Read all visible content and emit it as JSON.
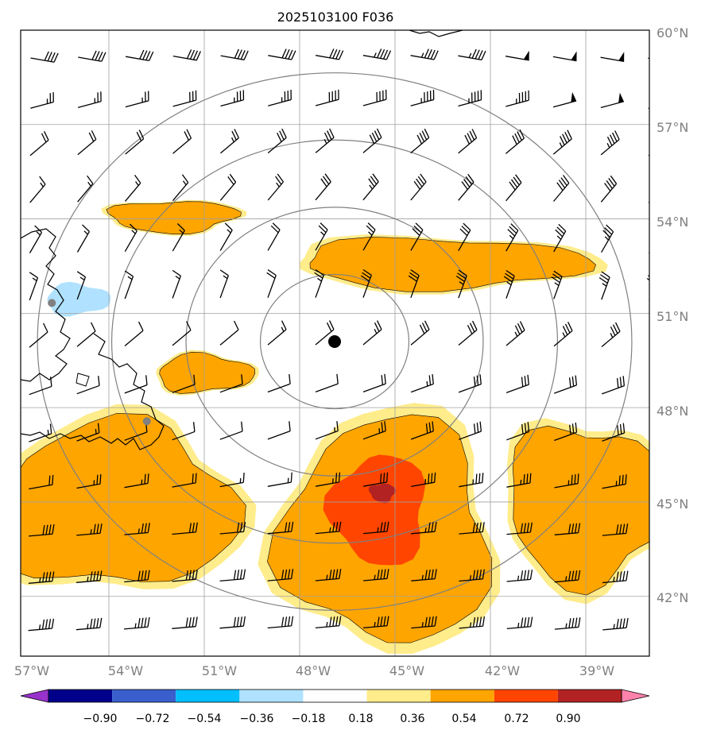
{
  "title": "2025103100 F036",
  "map": {
    "projection": "polar stereographic",
    "lon_range": [
      -57.5,
      -36.5
    ],
    "lat_range": [
      40.3,
      60.0
    ],
    "center_marker": {
      "lon": -46.9,
      "lat": 50.1
    },
    "site_markers": [
      {
        "lon": -55.8,
        "lat": 51.4
      },
      {
        "lon": -52.8,
        "lat": 47.6
      }
    ],
    "range_rings_km": [
      250,
      500,
      750,
      1000
    ],
    "gridlines": true,
    "land_color": "#ffffff",
    "coastline_color": "#000000",
    "grid_color": "#a0a0a0",
    "ring_color": "#808080"
  },
  "axes": {
    "lon_ticks": [
      "57°W",
      "54°W",
      "51°W",
      "48°W",
      "45°W",
      "42°W",
      "39°W"
    ],
    "lat_ticks": [
      "60°N",
      "57°N",
      "54°N",
      "51°N",
      "48°N",
      "45°N",
      "42°N"
    ]
  },
  "colorbar": {
    "extend": "both",
    "levels": [
      -0.9,
      -0.72,
      -0.54,
      -0.36,
      -0.18,
      0.18,
      0.36,
      0.54,
      0.72,
      0.9
    ],
    "labels": [
      "−0.90",
      "−0.72",
      "−0.54",
      "−0.36",
      "−0.18",
      "0.18",
      "0.36",
      "0.54",
      "0.72",
      "0.90"
    ],
    "colors": [
      "#9932cc",
      "#00008b",
      "#3a5fcd",
      "#00bfff",
      "#b0e2ff",
      "#ffffff",
      "#ffec8b",
      "#ffa500",
      "#ff4500",
      "#b22222",
      "#ff82ab"
    ]
  },
  "field_regions": [
    {
      "name": "labrador-sea-band",
      "level": 0.36,
      "lon": [
        -54,
        -50
      ],
      "lat": [
        53.6,
        54.6
      ]
    },
    {
      "name": "central-north-band",
      "level": 0.36,
      "lon": [
        -48,
        -39
      ],
      "lat": [
        51.8,
        53.4
      ]
    },
    {
      "name": "newfoundland-band",
      "level": 0.36,
      "lon": [
        -52.5,
        -49.5
      ],
      "lat": [
        48.5,
        49.7
      ]
    },
    {
      "name": "southwest-patch",
      "level": 0.36,
      "lon": [
        -57.5,
        -50
      ],
      "lat": [
        42.3,
        47.5
      ]
    },
    {
      "name": "central-south-patch",
      "level": 0.36,
      "lon": [
        -48.5,
        -42
      ],
      "lat": [
        40.5,
        47.6
      ]
    },
    {
      "name": "central-south-core",
      "level": 0.54,
      "lon": [
        -47,
        -44
      ],
      "lat": [
        43,
        46.5
      ]
    },
    {
      "name": "central-south-peak",
      "level": 0.72,
      "lon": [
        -45.8,
        -45
      ],
      "lat": [
        45,
        45.6
      ]
    },
    {
      "name": "east-patch",
      "level": 0.36,
      "lon": [
        -41.5,
        -36.5
      ],
      "lat": [
        42.5,
        47.5
      ]
    },
    {
      "name": "blue-spot",
      "level": -0.36,
      "lon": [
        -56,
        -54
      ],
      "lat": [
        51,
        52
      ]
    }
  ],
  "wind_barbs": {
    "units": "knots",
    "lons": [
      -56.5,
      -55,
      -53.5,
      -52,
      -50.5,
      -49,
      -47.5,
      -46,
      -44.5,
      -43,
      -41.5,
      -40,
      -38.5,
      -37
    ],
    "lats": [
      59.2,
      57.6,
      56.1,
      54.6,
      53.0,
      51.5,
      50.0,
      48.5,
      47.0,
      45.5,
      44.0,
      42.5,
      41.0
    ],
    "rows": [
      {
        "lat": 59.2,
        "dir": 280,
        "speed": [
          40,
          40,
          40,
          40,
          40,
          40,
          40,
          45,
          45,
          45,
          50,
          50,
          50,
          50
        ]
      },
      {
        "lat": 57.6,
        "dir": 255,
        "speed": [
          25,
          25,
          25,
          30,
          35,
          35,
          40,
          40,
          45,
          45,
          45,
          50,
          50,
          50
        ]
      },
      {
        "lat": 56.1,
        "dir": 230,
        "speed": [
          20,
          20,
          20,
          20,
          25,
          30,
          35,
          40,
          40,
          40,
          40,
          45,
          45,
          45
        ]
      },
      {
        "lat": 54.6,
        "dir": 220,
        "speed": [
          15,
          15,
          15,
          15,
          20,
          25,
          30,
          35,
          40,
          40,
          40,
          40,
          40,
          45
        ]
      },
      {
        "lat": 53.0,
        "dir": 210,
        "speed": [
          15,
          15,
          15,
          15,
          15,
          20,
          25,
          25,
          30,
          30,
          35,
          35,
          35,
          35
        ]
      },
      {
        "lat": 51.5,
        "dir": 200,
        "speed": [
          15,
          15,
          15,
          15,
          15,
          20,
          25,
          30,
          30,
          35,
          35,
          35,
          35,
          35
        ]
      },
      {
        "lat": 50.0,
        "dir": 230,
        "speed": [
          10,
          10,
          10,
          10,
          10,
          15,
          20,
          25,
          30,
          30,
          35,
          35,
          35,
          35
        ]
      },
      {
        "lat": 48.5,
        "dir": 250,
        "speed": [
          10,
          10,
          10,
          10,
          10,
          10,
          10,
          20,
          25,
          30,
          30,
          30,
          30,
          30
        ]
      },
      {
        "lat": 47.0,
        "dir": 250,
        "speed": [
          15,
          15,
          10,
          10,
          10,
          10,
          15,
          25,
          30,
          30,
          30,
          30,
          30,
          30
        ]
      },
      {
        "lat": 45.5,
        "dir": 260,
        "speed": [
          20,
          25,
          25,
          20,
          15,
          15,
          25,
          30,
          35,
          35,
          35,
          35,
          35,
          30
        ]
      },
      {
        "lat": 44.0,
        "dir": 265,
        "speed": [
          40,
          35,
          35,
          30,
          30,
          30,
          35,
          35,
          35,
          40,
          40,
          40,
          40,
          40
        ]
      },
      {
        "lat": 42.5,
        "dir": 265,
        "speed": [
          45,
          45,
          40,
          40,
          40,
          40,
          45,
          45,
          45,
          45,
          45,
          45,
          45,
          45
        ]
      },
      {
        "lat": 41.0,
        "dir": 265,
        "speed": [
          45,
          45,
          45,
          40,
          40,
          40,
          45,
          45,
          45,
          45,
          45,
          45,
          45,
          45
        ]
      }
    ]
  }
}
